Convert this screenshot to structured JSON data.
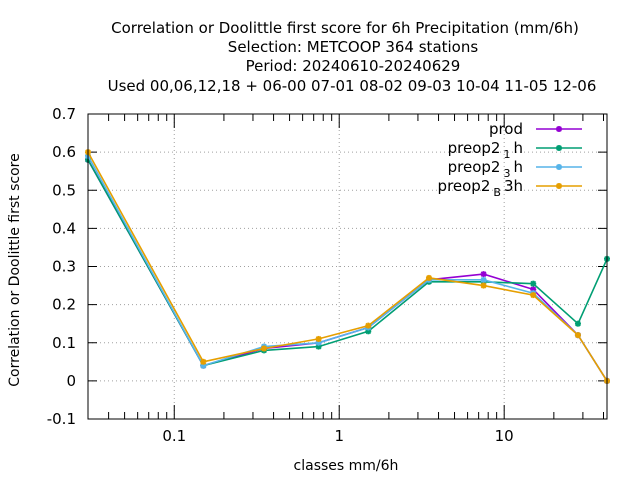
{
  "chart_data": {
    "type": "line",
    "title_lines": [
      "Correlation or Doolittle first score  for 6h Precipitation (mm/6h)",
      "Selection: METCOOP    364 stations",
      "Period: 20240610-20240629",
      "Used  00,06,12,18 + 06-00 07-01 08-02 09-03 10-04 11-05 12-06"
    ],
    "xlabel": "classes mm/6h",
    "ylabel": "Correlation or Doolittle first score",
    "x_scale": "log",
    "xlim": [
      0.03,
      42
    ],
    "ylim": [
      -0.1,
      0.7
    ],
    "x_ticks": [
      {
        "value": 0.1,
        "label": "0.1"
      },
      {
        "value": 1,
        "label": "1"
      },
      {
        "value": 10,
        "label": "10"
      }
    ],
    "y_ticks": [
      {
        "value": 0.7,
        "label": "0.7"
      },
      {
        "value": 0.6,
        "label": "0.6"
      },
      {
        "value": 0.5,
        "label": "0.5"
      },
      {
        "value": 0.4,
        "label": "0.4"
      },
      {
        "value": 0.3,
        "label": "0.3"
      },
      {
        "value": 0.2,
        "label": "0.2"
      },
      {
        "value": 0.1,
        "label": "0.1"
      },
      {
        "value": 0,
        "label": "0"
      },
      {
        "value": -0.1,
        "label": "-0.1"
      }
    ],
    "grid": true,
    "legend_position": "top-right",
    "x": [
      0.03,
      0.15,
      0.35,
      0.75,
      1.5,
      3.5,
      7.5,
      15,
      28,
      42
    ],
    "series": [
      {
        "name": "prod",
        "color": "#9400d3",
        "values": [
          0.58,
          0.04,
          0.085,
          0.1,
          0.14,
          0.265,
          0.28,
          0.24,
          0.12,
          0.0
        ]
      },
      {
        "name": "preop2 1 h",
        "color": "#009e73",
        "values": [
          0.58,
          0.04,
          0.08,
          0.09,
          0.13,
          0.26,
          0.26,
          0.255,
          0.15,
          0.32
        ]
      },
      {
        "name": "preop2 3 h",
        "color": "#56b4e9",
        "values": [
          0.59,
          0.04,
          0.09,
          0.1,
          0.14,
          0.265,
          0.265,
          0.23,
          0.12,
          0.0
        ]
      },
      {
        "name": "preop2 B 3h",
        "color": "#e69f00",
        "values": [
          0.6,
          0.05,
          0.085,
          0.11,
          0.145,
          0.27,
          0.25,
          0.225,
          0.12,
          0.0
        ]
      }
    ],
    "legend_text": [
      {
        "main": "prod",
        "sub": "",
        "tail": ""
      },
      {
        "main": "preop2",
        "sub": "1",
        "tail": "h"
      },
      {
        "main": "preop2",
        "sub": "3",
        "tail": "h"
      },
      {
        "main": "preop2",
        "sub": "B",
        "tail": "3h"
      }
    ]
  }
}
